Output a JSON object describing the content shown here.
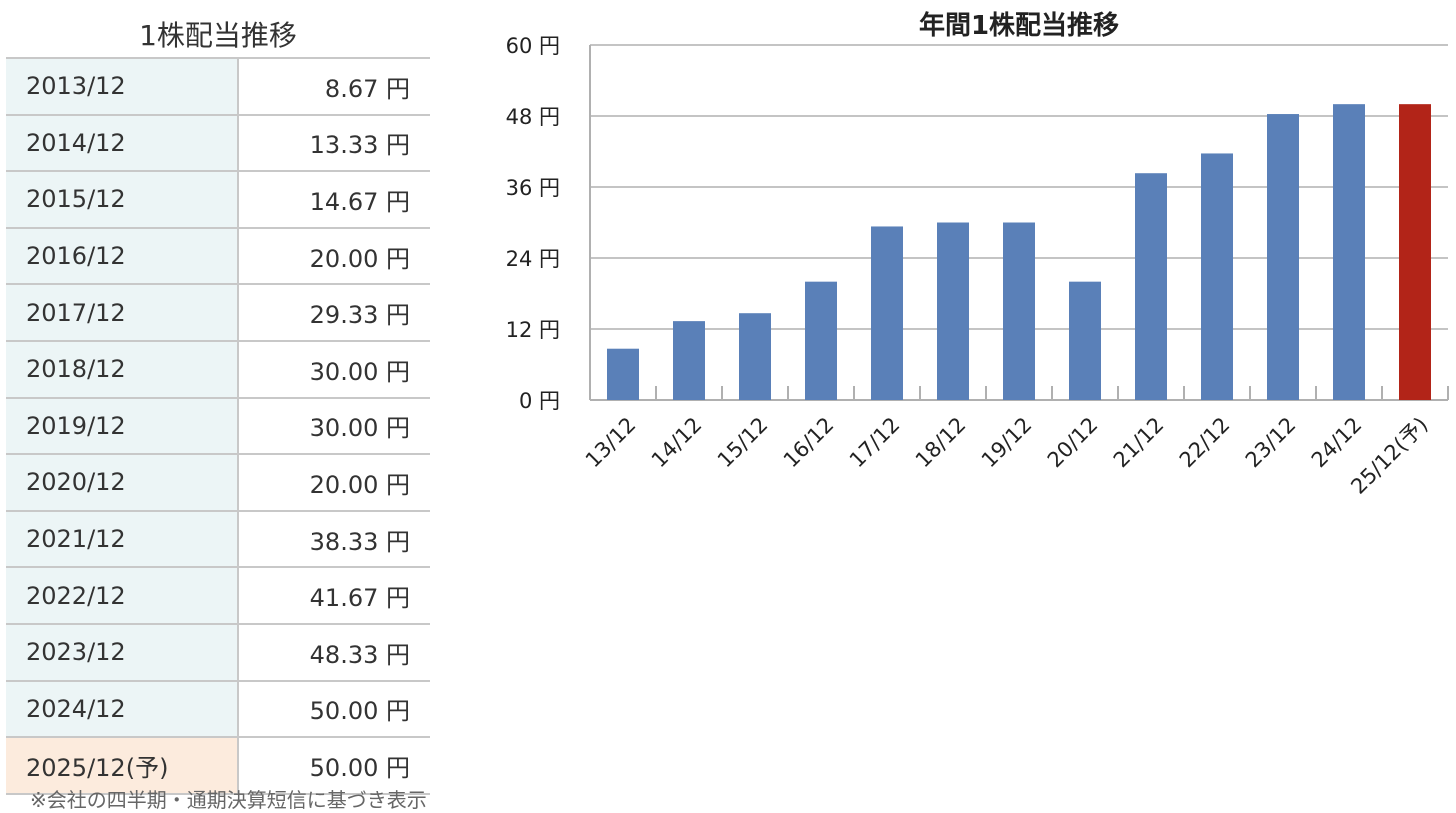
{
  "table": {
    "title": "1株配当推移",
    "rows": [
      {
        "period": "2013/12",
        "amount": "8.67 円"
      },
      {
        "period": "2014/12",
        "amount": "13.33 円"
      },
      {
        "period": "2015/12",
        "amount": "14.67 円"
      },
      {
        "period": "2016/12",
        "amount": "20.00 円"
      },
      {
        "period": "2017/12",
        "amount": "29.33 円"
      },
      {
        "period": "2018/12",
        "amount": "30.00 円"
      },
      {
        "period": "2019/12",
        "amount": "30.00 円"
      },
      {
        "period": "2020/12",
        "amount": "20.00 円"
      },
      {
        "period": "2021/12",
        "amount": "38.33 円"
      },
      {
        "period": "2022/12",
        "amount": "41.67 円"
      },
      {
        "period": "2023/12",
        "amount": "48.33 円"
      },
      {
        "period": "2024/12",
        "amount": "50.00 円"
      },
      {
        "period": "2025/12(予)",
        "amount": "50.00 円",
        "forecast": true
      }
    ],
    "row_colors": {
      "actual": "#ecf5f6",
      "forecast": "#fcebdd"
    }
  },
  "footnote": "※会社の四半期・通期決算短信に基づき表示",
  "chart_data": {
    "type": "bar",
    "title": "年間1株配当推移",
    "categories": [
      "13/12",
      "14/12",
      "15/12",
      "16/12",
      "17/12",
      "18/12",
      "19/12",
      "20/12",
      "21/12",
      "22/12",
      "23/12",
      "24/12",
      "25/12(予)"
    ],
    "values": [
      8.67,
      13.33,
      14.67,
      20.0,
      29.33,
      30.0,
      30.0,
      20.0,
      38.33,
      41.67,
      48.33,
      50.0,
      50.0
    ],
    "forecast_flags": [
      false,
      false,
      false,
      false,
      false,
      false,
      false,
      false,
      false,
      false,
      false,
      false,
      true
    ],
    "colors": {
      "actual": "#5a80b8",
      "forecast": "#b22418"
    },
    "yticks": [
      "0 円",
      "12 円",
      "24 円",
      "36 円",
      "48 円",
      "60 円"
    ],
    "ytick_values": [
      0,
      12,
      24,
      36,
      48,
      60
    ],
    "ylim": [
      0,
      60
    ],
    "grid": true,
    "xlabel": "",
    "ylabel": ""
  }
}
